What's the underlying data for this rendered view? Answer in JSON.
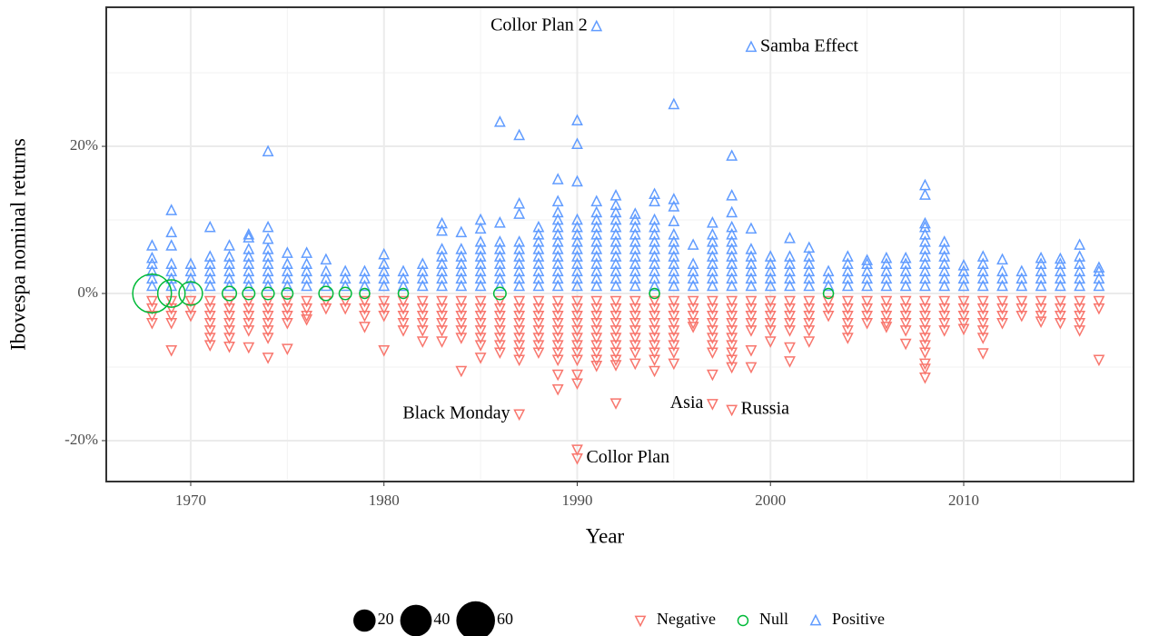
{
  "chart_data": {
    "type": "strip",
    "x_label": "Year",
    "y_label": "Ibovespa nominal returns",
    "xlim": [
      1965.63,
      2018.79
    ],
    "ylim": [
      -25.56,
      38.9
    ],
    "xticks": [
      1970,
      1980,
      1990,
      2000,
      2010
    ],
    "xminor": [
      1975,
      1985,
      1995,
      2005,
      2015
    ],
    "yticks": [
      {
        "value": -20,
        "label": "-20%"
      },
      {
        "value": 0,
        "label": "0%"
      },
      {
        "value": 20,
        "label": "20%"
      }
    ],
    "yminor": [
      -10,
      10,
      30
    ],
    "grid": true,
    "x": [
      1968,
      1969,
      1970,
      1971,
      1972,
      1973,
      1974,
      1975,
      1976,
      1977,
      1978,
      1979,
      1980,
      1981,
      1982,
      1983,
      1984,
      1985,
      1986,
      1987,
      1988,
      1989,
      1990,
      1991,
      1992,
      1993,
      1994,
      1995,
      1996,
      1997,
      1998,
      1999,
      2000,
      2001,
      2002,
      2003,
      2004,
      2005,
      2006,
      2007,
      2008,
      2009,
      2010,
      2011,
      2012,
      2013,
      2014,
      2015,
      2016,
      2017
    ],
    "series": [
      {
        "name": "Negative",
        "color": "#F8766D",
        "marker": "triangle-down",
        "values": [
          [
            -1,
            -2,
            -3,
            -4
          ],
          [
            -1,
            -2,
            -3,
            -4,
            -7.7
          ],
          [
            -1,
            -2,
            -3
          ],
          [
            -1,
            -2,
            -3,
            -4,
            -5,
            -6,
            -7
          ],
          [
            -1,
            -2,
            -3,
            -4,
            -5,
            -6,
            -7.2
          ],
          [
            -1,
            -2,
            -3,
            -4,
            -5,
            -7.3
          ],
          [
            -1,
            -2,
            -3,
            -4,
            -5,
            -6,
            -8.7
          ],
          [
            -1,
            -2,
            -3,
            -4,
            -7.5
          ],
          [
            -1,
            -2,
            -3,
            -3.5
          ],
          [
            -1,
            -2
          ],
          [
            -1,
            -2
          ],
          [
            -1,
            -2,
            -3,
            -4.5
          ],
          [
            -1,
            -2,
            -3,
            -7.7
          ],
          [
            -1,
            -2,
            -3,
            -4,
            -5
          ],
          [
            -1,
            -2,
            -3,
            -4,
            -5,
            -6.5
          ],
          [
            -1,
            -2,
            -3,
            -4,
            -5,
            -6.5
          ],
          [
            -1,
            -2,
            -3,
            -4,
            -5,
            -6,
            -10.5
          ],
          [
            -1,
            -2,
            -3,
            -4,
            -5,
            -6,
            -7,
            -8.7
          ],
          [
            -1,
            -2,
            -3,
            -4,
            -5,
            -6,
            -7,
            -8
          ],
          [
            -1,
            -2,
            -3,
            -4,
            -5,
            -6,
            -7,
            -8,
            -9,
            -16.4
          ],
          [
            -1,
            -2,
            -3,
            -4,
            -5,
            -6,
            -7,
            -8
          ],
          [
            -1,
            -2,
            -3,
            -4,
            -5,
            -6,
            -7,
            -8,
            -9,
            -11,
            -13
          ],
          [
            -1,
            -2,
            -3,
            -4,
            -5,
            -6,
            -7,
            -8,
            -9,
            -11,
            -12.2,
            -21.2,
            -22.4
          ],
          [
            -1,
            -2,
            -3,
            -4,
            -5,
            -6,
            -7,
            -8,
            -9,
            -9.8
          ],
          [
            -1,
            -2,
            -3,
            -4,
            -5,
            -6,
            -7,
            -8,
            -9,
            -9.7,
            -14.9
          ],
          [
            -1,
            -2,
            -3,
            -4,
            -5,
            -6,
            -7,
            -8,
            -9.5
          ],
          [
            -1,
            -2,
            -3,
            -4,
            -5,
            -6,
            -7,
            -8,
            -9,
            -10.5
          ],
          [
            -1,
            -2,
            -3,
            -4,
            -5,
            -6,
            -7,
            -8,
            -9.5
          ],
          [
            -1,
            -2,
            -3,
            -4,
            -4.5
          ],
          [
            -1,
            -2,
            -3,
            -4,
            -5,
            -6,
            -7,
            -8,
            -11,
            -15
          ],
          [
            -1,
            -2,
            -3,
            -4,
            -5,
            -6,
            -7,
            -8,
            -9,
            -10,
            -15.8
          ],
          [
            -1,
            -2,
            -3,
            -4,
            -5,
            -7.7,
            -10
          ],
          [
            -1,
            -2,
            -3,
            -4,
            -5,
            -6.5
          ],
          [
            -1,
            -2,
            -3,
            -4,
            -5,
            -7.3,
            -9.2
          ],
          [
            -1,
            -2,
            -3,
            -4,
            -5,
            -6.5
          ],
          [
            -1,
            -2,
            -3
          ],
          [
            -1,
            -2,
            -3,
            -4,
            -5,
            -6
          ],
          [
            -1,
            -2,
            -3,
            -4
          ],
          [
            -1,
            -2,
            -3,
            -4,
            -4.5
          ],
          [
            -1,
            -2,
            -3,
            -4,
            -5,
            -6.8
          ],
          [
            -1,
            -2,
            -3,
            -4,
            -5,
            -6,
            -7,
            -8,
            -9.5,
            -10.2,
            -11.4
          ],
          [
            -1,
            -2,
            -3,
            -4,
            -5
          ],
          [
            -1,
            -2,
            -3,
            -4,
            -4.8
          ],
          [
            -1,
            -2,
            -3,
            -4,
            -5,
            -6,
            -8.1
          ],
          [
            -1,
            -2,
            -3,
            -4
          ],
          [
            -1,
            -2,
            -3
          ],
          [
            -1,
            -2,
            -3,
            -3.8
          ],
          [
            -1,
            -2,
            -3,
            -4
          ],
          [
            -1,
            -2,
            -3,
            -4,
            -5
          ],
          [
            -1,
            -2,
            -9
          ]
        ]
      },
      {
        "name": "Null",
        "color": "#00BA38",
        "marker": "circle",
        "x": [
          1968,
          1969,
          1970,
          1972,
          1973,
          1974,
          1975,
          1977,
          1978,
          1979,
          1981,
          1986,
          1994,
          2003
        ],
        "values": [
          0,
          0,
          0,
          0,
          0,
          0,
          0,
          0,
          0,
          0,
          0,
          0,
          0,
          0
        ],
        "sizes": [
          60,
          30,
          22,
          8,
          6,
          6,
          5,
          8,
          6,
          4,
          4,
          6,
          4,
          4
        ]
      },
      {
        "name": "Positive",
        "color": "#619CFF",
        "marker": "triangle-up",
        "values": [
          [
            1,
            2,
            3,
            4,
            4.8,
            6.5
          ],
          [
            1,
            2,
            3,
            4,
            6.5,
            8.3,
            11.3
          ],
          [
            1,
            2,
            3,
            4
          ],
          [
            1,
            2,
            3,
            4,
            5,
            9
          ],
          [
            1,
            2,
            3,
            4,
            5,
            6.5
          ],
          [
            1,
            2,
            3,
            4,
            5,
            6,
            7.6,
            8
          ],
          [
            1,
            2,
            3,
            4,
            5,
            6,
            7.4,
            9,
            19.3
          ],
          [
            1,
            2,
            3,
            4,
            5.5
          ],
          [
            1,
            2,
            3,
            4,
            5.5
          ],
          [
            1,
            2,
            3,
            4.6
          ],
          [
            1,
            2,
            3
          ],
          [
            1,
            2,
            3
          ],
          [
            1,
            2,
            3,
            4,
            5.3
          ],
          [
            1,
            2,
            3
          ],
          [
            1,
            2,
            3,
            4
          ],
          [
            1,
            2,
            3,
            4,
            5,
            6,
            8.5,
            9.5
          ],
          [
            1,
            2,
            3,
            4,
            5,
            6,
            8.3
          ],
          [
            1,
            2,
            3,
            4,
            5,
            6,
            7,
            8.8,
            10
          ],
          [
            1,
            2,
            3,
            4,
            5,
            6,
            7,
            9.6,
            23.3
          ],
          [
            1,
            2,
            3,
            4,
            5,
            6,
            7,
            10.8,
            12.2,
            21.5
          ],
          [
            1,
            2,
            3,
            4,
            5,
            6,
            7,
            8,
            9
          ],
          [
            1,
            2,
            3,
            4,
            5,
            6,
            7,
            8,
            9,
            10,
            11,
            12.5,
            15.5
          ],
          [
            1,
            2,
            3,
            4,
            5,
            6,
            7,
            8,
            9,
            10,
            15.2,
            20.3,
            23.5
          ],
          [
            1,
            2,
            3,
            4,
            5,
            6,
            7,
            8,
            9,
            10,
            11,
            12.5,
            36.3
          ],
          [
            1,
            2,
            3,
            4,
            5,
            6,
            7,
            8,
            9,
            10,
            11,
            12,
            13.3
          ],
          [
            1,
            2,
            3,
            4,
            5,
            6,
            7,
            8,
            9,
            10,
            10.8
          ],
          [
            1,
            2,
            3,
            4,
            5,
            6,
            7,
            8,
            9,
            10,
            12.5,
            13.5
          ],
          [
            1,
            2,
            3,
            4,
            5,
            6,
            7,
            8,
            9.8,
            11.8,
            12.8,
            25.7
          ],
          [
            1,
            2,
            3,
            4,
            6.6
          ],
          [
            1,
            2,
            3,
            4,
            5,
            6,
            7,
            8,
            9.6
          ],
          [
            1,
            2,
            3,
            4,
            5,
            6,
            7,
            8,
            9,
            11,
            13.3,
            18.7
          ],
          [
            1,
            2,
            3,
            4,
            5,
            6,
            8.8,
            33.5
          ],
          [
            1,
            2,
            3,
            4,
            5
          ],
          [
            1,
            2,
            3,
            4,
            5,
            7.5
          ],
          [
            1,
            2,
            3,
            4,
            5,
            6.2
          ],
          [
            1,
            2,
            3
          ],
          [
            1,
            2,
            3,
            4,
            5
          ],
          [
            1,
            2,
            3,
            4,
            4.5
          ],
          [
            1,
            2,
            3,
            4,
            4.8
          ],
          [
            1,
            2,
            3,
            4,
            4.8
          ],
          [
            1,
            2,
            3,
            4,
            5,
            6,
            7,
            8,
            9,
            9.5,
            13.4,
            14.7
          ],
          [
            1,
            2,
            3,
            4,
            5,
            6,
            7
          ],
          [
            1,
            2,
            3,
            3.8
          ],
          [
            1,
            2,
            3,
            4,
            5
          ],
          [
            1,
            2,
            3,
            4.6
          ],
          [
            1,
            2,
            3
          ],
          [
            1,
            2,
            3,
            4,
            4.8
          ],
          [
            1,
            2,
            3,
            4,
            4.7
          ],
          [
            1,
            2,
            3,
            4,
            5,
            6.6
          ],
          [
            1,
            2,
            3,
            3.5
          ]
        ]
      }
    ],
    "size_legend": [
      20,
      40,
      60
    ],
    "annotations": [
      {
        "text": "Collor Plan 2",
        "x": 1991,
        "y": 36.3
      },
      {
        "text": "Samba Effect",
        "x": 1999,
        "y": 33.5
      },
      {
        "text": "Black Monday",
        "x": 1987,
        "y": -16.4
      },
      {
        "text": "Asia",
        "x": 1997,
        "y": -15
      },
      {
        "text": "Russia",
        "x": 1998,
        "y": -15.8
      },
      {
        "text": "Collor Plan",
        "x": 1990,
        "y": -22.4
      }
    ]
  }
}
